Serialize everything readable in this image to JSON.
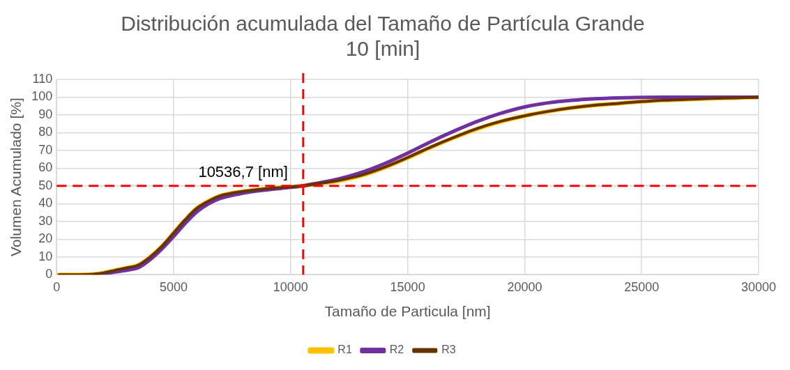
{
  "chart_data": {
    "type": "line",
    "title": "Distribución acumulada del Tamaño de Partícula Grande\n10 [min]",
    "xlabel": "Tamaño de Particula [nm]",
    "ylabel": "Volumen Acumulado [%]",
    "xlim": [
      0,
      30000
    ],
    "xticks": [
      0,
      5000,
      10000,
      15000,
      20000,
      25000,
      30000
    ],
    "ylim": [
      0,
      110
    ],
    "yticks": [
      0,
      10,
      20,
      30,
      40,
      50,
      60,
      70,
      80,
      90,
      100,
      110
    ],
    "grid": true,
    "legend": "bottom",
    "marker": "none",
    "line_style": "solid",
    "ref_lines": [
      {
        "axis": "x",
        "value": 10536.7,
        "color": "#ff0000",
        "line_style": "dashed"
      },
      {
        "axis": "y",
        "value": 50,
        "color": "#ff0000",
        "line_style": "dashed"
      }
    ],
    "annotations": [
      {
        "text": "10536,7 [nm]",
        "x": 10536.7,
        "y": 50
      }
    ],
    "series": [
      {
        "name": "R1",
        "color": "#ffc000",
        "x": [
          100,
          1000,
          1600,
          2000,
          2500,
          3000,
          3500,
          4000,
          4500,
          5000,
          5500,
          6000,
          6500,
          7000,
          8000,
          9000,
          10000,
          10500,
          11000,
          12000,
          13000,
          14000,
          15000,
          16000,
          17000,
          18000,
          19000,
          20000,
          21000,
          22000,
          23000,
          24000,
          25000,
          26000,
          27000,
          28000,
          29000,
          30000
        ],
        "values": [
          0,
          0,
          0.3,
          1,
          2.5,
          3.8,
          5.5,
          10,
          16,
          23.5,
          31,
          37.5,
          41.5,
          44.5,
          47,
          48.5,
          49.5,
          50,
          51,
          52.8,
          55.8,
          60.3,
          65.8,
          71.8,
          77.3,
          82.3,
          86.3,
          89.5,
          92,
          94,
          95.5,
          96.5,
          97.5,
          98.3,
          98.8,
          99.3,
          99.6,
          100
        ]
      },
      {
        "name": "R2",
        "color": "#7030a0",
        "x": [
          1600,
          2000,
          2500,
          3000,
          3500,
          4000,
          4500,
          5000,
          5500,
          6000,
          6500,
          7000,
          8000,
          9000,
          10000,
          10500,
          11000,
          12000,
          13000,
          14000,
          15000,
          16000,
          17000,
          18000,
          19000,
          20000,
          21000,
          22000,
          23000,
          24000,
          25000,
          26000,
          30000
        ],
        "values": [
          0,
          0.5,
          1.5,
          2.5,
          4,
          8.5,
          14.5,
          21.5,
          29,
          35.5,
          40,
          43,
          46,
          47.8,
          49.2,
          50,
          51.2,
          53.8,
          57.5,
          62.5,
          68.5,
          75,
          81,
          86.5,
          91,
          94.5,
          96.8,
          98.2,
          99.1,
          99.6,
          99.9,
          100,
          100
        ]
      },
      {
        "name": "R3",
        "color": "#663300",
        "x": [
          100,
          1000,
          1600,
          2000,
          2500,
          3000,
          3500,
          4000,
          4500,
          5000,
          5500,
          6000,
          6500,
          7000,
          8000,
          9000,
          10000,
          10500,
          11000,
          12000,
          13000,
          14000,
          15000,
          16000,
          17000,
          18000,
          19000,
          20000,
          21000,
          22000,
          23000,
          24000,
          25000,
          26000,
          27000,
          28000,
          29000,
          30000
        ],
        "values": [
          0,
          0,
          0.3,
          1,
          2.5,
          3.8,
          5.5,
          10,
          16,
          23.5,
          31,
          37.5,
          41.5,
          44.5,
          47,
          48.5,
          49.5,
          50,
          51,
          53,
          56,
          60.5,
          66,
          72,
          77.5,
          82.5,
          86.5,
          89.5,
          92,
          94,
          95.5,
          96.5,
          97.5,
          98.3,
          98.8,
          99.3,
          99.6,
          100
        ]
      }
    ]
  }
}
